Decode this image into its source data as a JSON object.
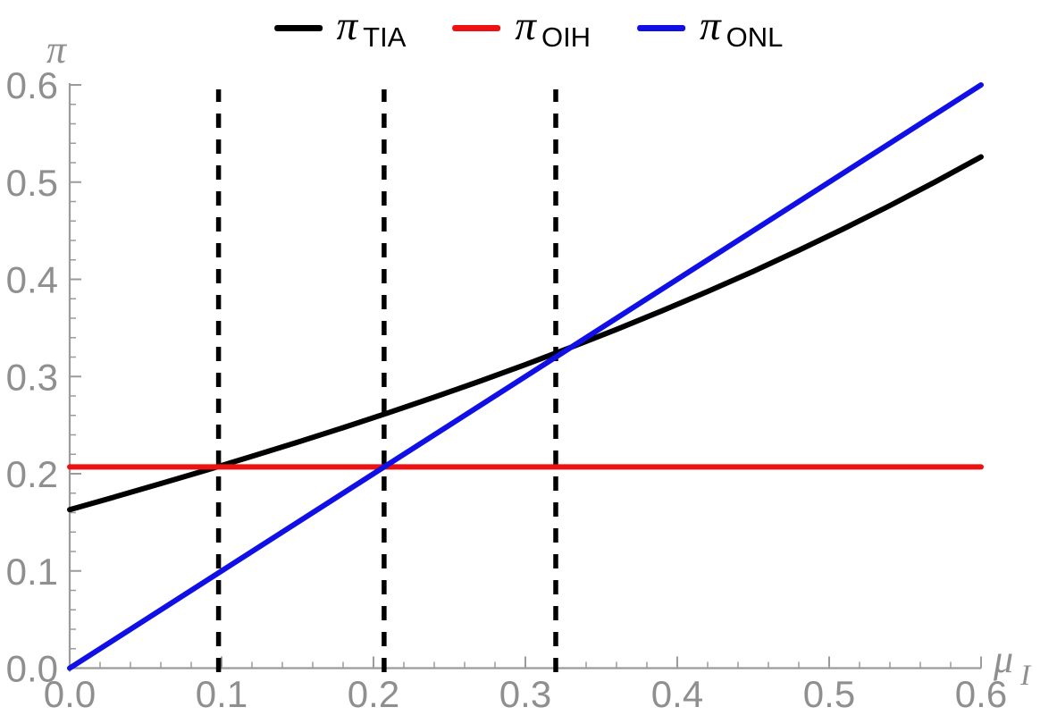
{
  "figure": {
    "background": "#ffffff",
    "axis_color": "#9b9b9b",
    "tick_label_color": "#8f8f8f",
    "dashed_line_color": "#000000"
  },
  "legend": {
    "position": "top-center",
    "items": [
      {
        "symbol": "π",
        "sub": "TIA",
        "color": "#000000"
      },
      {
        "symbol": "π",
        "sub": "OIH",
        "color": "#ee1111"
      },
      {
        "symbol": "π",
        "sub": "ONL",
        "color": "#0f0fe6"
      }
    ]
  },
  "axes": {
    "y_axis_label": "π",
    "x_axis_label_symbol": "μ",
    "x_axis_label_sub": "I"
  },
  "chart_data": {
    "type": "line",
    "title": "",
    "xlabel": "μ_I",
    "ylabel": "π",
    "xlim": [
      0,
      0.6
    ],
    "ylim": [
      0,
      0.6
    ],
    "grid": false,
    "legend_position": "top-center",
    "x_tick_labels": [
      "0.0",
      "0.1",
      "0.2",
      "0.3",
      "0.4",
      "0.5",
      "0.6"
    ],
    "y_tick_labels": [
      "0.0",
      "0.1",
      "0.2",
      "0.3",
      "0.4",
      "0.5",
      "0.6"
    ],
    "minor_tick_step": 0.02,
    "series": [
      {
        "name": "π_TIA",
        "color": "#000000",
        "dash": "solid",
        "x": [
          0,
          0.03,
          0.06,
          0.09,
          0.12,
          0.15,
          0.18,
          0.21,
          0.24,
          0.27,
          0.3,
          0.33,
          0.36,
          0.39,
          0.42,
          0.45,
          0.48,
          0.51,
          0.54,
          0.57,
          0.6
        ],
        "y": [
          0.163,
          0.1763,
          0.1899,
          0.2037,
          0.2179,
          0.2324,
          0.2474,
          0.2628,
          0.2787,
          0.2952,
          0.3123,
          0.33,
          0.3484,
          0.3676,
          0.3875,
          0.4082,
          0.4299,
          0.4524,
          0.4759,
          0.5004,
          0.526
        ]
      },
      {
        "name": "π_OIH",
        "color": "#ee1111",
        "dash": "solid",
        "x": [
          0,
          0.6
        ],
        "y": [
          0.207,
          0.207
        ]
      },
      {
        "name": "π_ONL",
        "color": "#0f0fe6",
        "dash": "solid",
        "x": [
          0,
          0.6
        ],
        "y": [
          0,
          0.6
        ]
      }
    ],
    "vlines": {
      "x": [
        0.098,
        0.207,
        0.32
      ],
      "style": "dashed",
      "color": "#000000"
    }
  }
}
